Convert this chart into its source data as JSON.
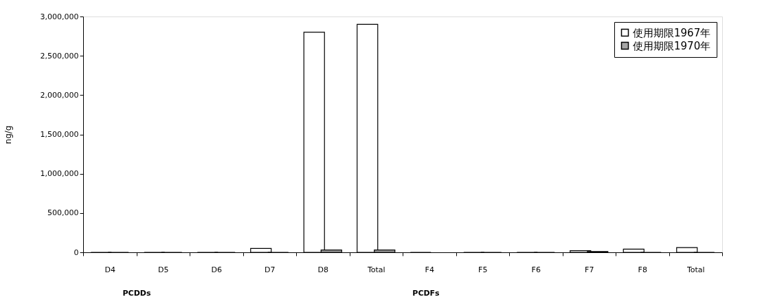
{
  "chart_data": {
    "type": "bar",
    "ylabel": "ng/g",
    "categories": [
      "D4",
      "D5",
      "D6",
      "D7",
      "D8",
      "Total",
      "F4",
      "F5",
      "F6",
      "F7",
      "F8",
      "Total"
    ],
    "series": [
      {
        "name": "使用期限1967年",
        "color": "#ffffff",
        "values": [
          0,
          0,
          0,
          50000,
          2800000,
          2900000,
          0,
          0,
          0,
          20000,
          40000,
          60000
        ]
      },
      {
        "name": "使用期限1970年",
        "color": "#a6a6a6",
        "values": [
          0,
          0,
          0,
          0,
          30000,
          30000,
          null,
          0,
          0,
          10000,
          0,
          0
        ]
      }
    ],
    "ylim": [
      0,
      3000000
    ],
    "yticks": [
      0,
      {
        "value": 500000,
        "label": "500,000"
      },
      {
        "value": 1000000,
        "label": "1,000,000"
      },
      {
        "value": 1500000,
        "label": "1,500,000"
      },
      {
        "value": 2000000,
        "label": "2,000,000"
      },
      {
        "value": 2500000,
        "label": "2,500,000"
      },
      {
        "value": 3000000,
        "label": "3,000,000"
      }
    ],
    "grid": false,
    "legend": "top right",
    "annotations": [
      "PCDDs",
      "PCDFs"
    ]
  }
}
